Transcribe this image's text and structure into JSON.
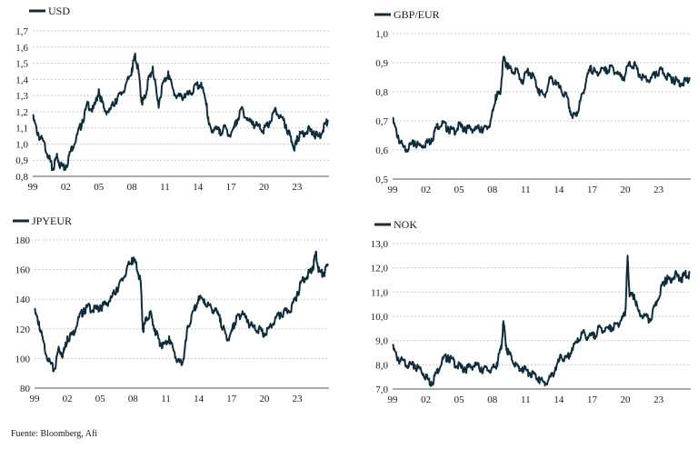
{
  "source": "Fuente: Bloomberg, Afi",
  "colors": {
    "series": "#0f2d3c",
    "grid": "#c8c8c8"
  },
  "chart_data": [
    {
      "type": "line",
      "title": "",
      "legend": "USD",
      "legend_placement": "top-left",
      "xlabel": "",
      "ylabel": "",
      "x_ticks": [
        "99",
        "02",
        "05",
        "08",
        "11",
        "14",
        "17",
        "20",
        "23"
      ],
      "x_tick_years": [
        1999,
        2002,
        2005,
        2008,
        2011,
        2014,
        2017,
        2020,
        2023
      ],
      "xlim": [
        1999,
        2025.9
      ],
      "y_ticks": [
        "0,8",
        "0,9",
        "1,0",
        "1,1",
        "1,2",
        "1,3",
        "1,4",
        "1,5",
        "1,6",
        "1,7"
      ],
      "ylim": [
        0.8,
        1.7
      ],
      "grid": true,
      "series": [
        {
          "name": "USD",
          "x": [
            1999.0,
            1999.5,
            2000.0,
            2000.5,
            2000.8,
            2001.2,
            2001.5,
            2002.0,
            2002.5,
            2003.0,
            2003.5,
            2004.0,
            2004.5,
            2005.0,
            2005.5,
            2006.0,
            2006.5,
            2007.0,
            2007.5,
            2008.0,
            2008.3,
            2008.6,
            2008.9,
            2009.2,
            2009.5,
            2009.9,
            2010.4,
            2010.8,
            2011.3,
            2011.8,
            2012.3,
            2012.8,
            2013.3,
            2013.8,
            2014.3,
            2014.8,
            2015.0,
            2015.5,
            2016.0,
            2016.5,
            2017.0,
            2017.5,
            2018.0,
            2018.5,
            2019.0,
            2019.5,
            2020.0,
            2020.5,
            2021.0,
            2021.5,
            2022.0,
            2022.4,
            2022.8,
            2023.0,
            2023.5,
            2024.0,
            2024.5,
            2025.0,
            2025.5,
            2025.8
          ],
          "y": [
            1.18,
            1.07,
            1.02,
            0.93,
            0.85,
            0.94,
            0.88,
            0.87,
            0.98,
            1.06,
            1.15,
            1.26,
            1.22,
            1.34,
            1.22,
            1.22,
            1.28,
            1.32,
            1.38,
            1.47,
            1.56,
            1.46,
            1.27,
            1.3,
            1.41,
            1.48,
            1.25,
            1.38,
            1.45,
            1.33,
            1.3,
            1.31,
            1.32,
            1.37,
            1.38,
            1.25,
            1.12,
            1.1,
            1.09,
            1.11,
            1.06,
            1.15,
            1.23,
            1.16,
            1.14,
            1.12,
            1.1,
            1.14,
            1.22,
            1.18,
            1.12,
            1.05,
            0.99,
            1.05,
            1.08,
            1.1,
            1.08,
            1.05,
            1.13,
            1.15
          ]
        }
      ]
    },
    {
      "type": "line",
      "title": "",
      "legend": "GBP/EUR",
      "legend_placement": "top-left",
      "xlabel": "",
      "ylabel": "",
      "x_ticks": [
        "99",
        "02",
        "05",
        "08",
        "11",
        "14",
        "17",
        "20",
        "23"
      ],
      "x_tick_years": [
        1999,
        2002,
        2005,
        2008,
        2011,
        2014,
        2017,
        2020,
        2023
      ],
      "xlim": [
        1999,
        2025.9
      ],
      "y_ticks": [
        "0,5",
        "0,6",
        "0,7",
        "0,8",
        "0,9",
        "1,0"
      ],
      "ylim": [
        0.5,
        1.0
      ],
      "grid": true,
      "series": [
        {
          "name": "GBP/EUR",
          "x": [
            1999.0,
            1999.5,
            2000.0,
            2000.5,
            2001.0,
            2001.5,
            2002.0,
            2002.5,
            2003.0,
            2003.5,
            2004.0,
            2004.5,
            2005.0,
            2005.5,
            2006.0,
            2006.5,
            2007.0,
            2007.5,
            2007.9,
            2008.3,
            2008.7,
            2009.0,
            2009.3,
            2009.7,
            2010.2,
            2010.7,
            2011.2,
            2011.7,
            2012.2,
            2012.7,
            2013.2,
            2013.7,
            2014.2,
            2014.7,
            2015.2,
            2015.6,
            2016.0,
            2016.5,
            2016.9,
            2017.3,
            2017.8,
            2018.3,
            2018.8,
            2019.3,
            2019.8,
            2020.3,
            2020.8,
            2021.3,
            2021.8,
            2022.3,
            2022.8,
            2023.3,
            2023.8,
            2024.3,
            2024.8,
            2025.3,
            2025.8
          ],
          "y": [
            0.71,
            0.65,
            0.61,
            0.62,
            0.63,
            0.62,
            0.63,
            0.64,
            0.69,
            0.7,
            0.68,
            0.67,
            0.69,
            0.68,
            0.68,
            0.68,
            0.68,
            0.68,
            0.71,
            0.79,
            0.8,
            0.92,
            0.9,
            0.88,
            0.88,
            0.84,
            0.88,
            0.86,
            0.81,
            0.79,
            0.85,
            0.84,
            0.81,
            0.79,
            0.72,
            0.73,
            0.78,
            0.85,
            0.89,
            0.87,
            0.88,
            0.88,
            0.89,
            0.87,
            0.85,
            0.9,
            0.9,
            0.86,
            0.85,
            0.85,
            0.87,
            0.88,
            0.86,
            0.85,
            0.84,
            0.84,
            0.85
          ]
        }
      ]
    },
    {
      "type": "line",
      "title": "",
      "legend": "JPYEUR",
      "legend_placement": "top-left",
      "xlabel": "",
      "ylabel": "",
      "x_ticks": [
        "99",
        "02",
        "05",
        "08",
        "11",
        "14",
        "17",
        "20",
        "23"
      ],
      "x_tick_years": [
        1999,
        2002,
        2005,
        2008,
        2011,
        2014,
        2017,
        2020,
        2023
      ],
      "xlim": [
        1999,
        2025.9
      ],
      "y_ticks": [
        "80",
        "100",
        "120",
        "140",
        "160",
        "180"
      ],
      "ylim": [
        80,
        180
      ],
      "grid": true,
      "series": [
        {
          "name": "JPYEUR",
          "x": [
            1999.0,
            1999.4,
            1999.8,
            2000.3,
            2000.8,
            2001.2,
            2001.6,
            2002.0,
            2002.5,
            2003.0,
            2003.5,
            2004.0,
            2004.5,
            2005.0,
            2005.5,
            2006.0,
            2006.5,
            2007.0,
            2007.5,
            2007.9,
            2008.3,
            2008.7,
            2008.9,
            2009.2,
            2009.6,
            2010.0,
            2010.4,
            2010.8,
            2011.3,
            2011.8,
            2012.2,
            2012.6,
            2013.0,
            2013.5,
            2014.0,
            2014.5,
            2015.0,
            2015.5,
            2016.0,
            2016.4,
            2016.8,
            2017.2,
            2017.6,
            2018.0,
            2018.5,
            2019.0,
            2019.5,
            2020.0,
            2020.5,
            2021.0,
            2021.5,
            2022.0,
            2022.5,
            2023.0,
            2023.5,
            2024.0,
            2024.4,
            2024.7,
            2025.0,
            2025.4,
            2025.8
          ],
          "y": [
            133,
            125,
            112,
            100,
            93,
            108,
            104,
            115,
            118,
            128,
            134,
            136,
            134,
            136,
            138,
            142,
            148,
            154,
            163,
            168,
            165,
            152,
            120,
            128,
            132,
            120,
            113,
            110,
            115,
            104,
            98,
            100,
            122,
            132,
            142,
            140,
            136,
            134,
            127,
            118,
            114,
            124,
            130,
            132,
            126,
            122,
            121,
            117,
            122,
            128,
            131,
            133,
            136,
            145,
            155,
            158,
            162,
            172,
            160,
            158,
            164
          ]
        }
      ]
    },
    {
      "type": "line",
      "title": "",
      "legend": "NOK",
      "legend_placement": "top-left",
      "xlabel": "",
      "ylabel": "",
      "x_ticks": [
        "99",
        "02",
        "05",
        "08",
        "11",
        "14",
        "17",
        "20",
        "23"
      ],
      "x_tick_years": [
        1999,
        2002,
        2005,
        2008,
        2011,
        2014,
        2017,
        2020,
        2023
      ],
      "xlim": [
        1999,
        2025.9
      ],
      "y_ticks": [
        "7,0",
        "8,0",
        "9,0",
        "10,0",
        "11,0",
        "12,0",
        "13,0"
      ],
      "ylim": [
        7.0,
        13.0
      ],
      "grid": true,
      "series": [
        {
          "name": "NOK",
          "x": [
            1999.0,
            1999.5,
            2000.0,
            2000.5,
            2001.0,
            2001.5,
            2002.0,
            2002.5,
            2003.0,
            2003.5,
            2004.0,
            2004.5,
            2005.0,
            2005.5,
            2006.0,
            2006.5,
            2007.0,
            2007.5,
            2008.0,
            2008.4,
            2008.8,
            2009.0,
            2009.3,
            2009.7,
            2010.2,
            2010.7,
            2011.2,
            2011.7,
            2012.2,
            2012.7,
            2013.2,
            2013.7,
            2014.2,
            2014.7,
            2015.2,
            2015.7,
            2016.2,
            2016.7,
            2017.2,
            2017.7,
            2018.2,
            2018.7,
            2019.2,
            2019.7,
            2020.0,
            2020.2,
            2020.4,
            2020.8,
            2021.2,
            2021.7,
            2022.2,
            2022.7,
            2023.2,
            2023.6,
            2024.0,
            2024.5,
            2025.0,
            2025.4,
            2025.8
          ],
          "y": [
            8.8,
            8.3,
            8.2,
            8.1,
            8.0,
            7.9,
            7.6,
            7.3,
            7.8,
            8.3,
            8.4,
            8.2,
            8.0,
            7.9,
            8.0,
            8.1,
            7.9,
            7.9,
            7.9,
            8.1,
            8.8,
            9.8,
            8.7,
            8.4,
            8.0,
            7.9,
            7.8,
            7.7,
            7.5,
            7.3,
            7.5,
            7.9,
            8.4,
            8.3,
            8.7,
            9.1,
            9.4,
            9.2,
            9.3,
            9.6,
            9.5,
            9.6,
            9.7,
            10.0,
            10.2,
            12.5,
            10.9,
            10.9,
            10.2,
            10.1,
            9.9,
            10.5,
            11.2,
            11.6,
            11.6,
            11.8,
            11.6,
            11.8,
            11.8
          ]
        }
      ]
    }
  ]
}
